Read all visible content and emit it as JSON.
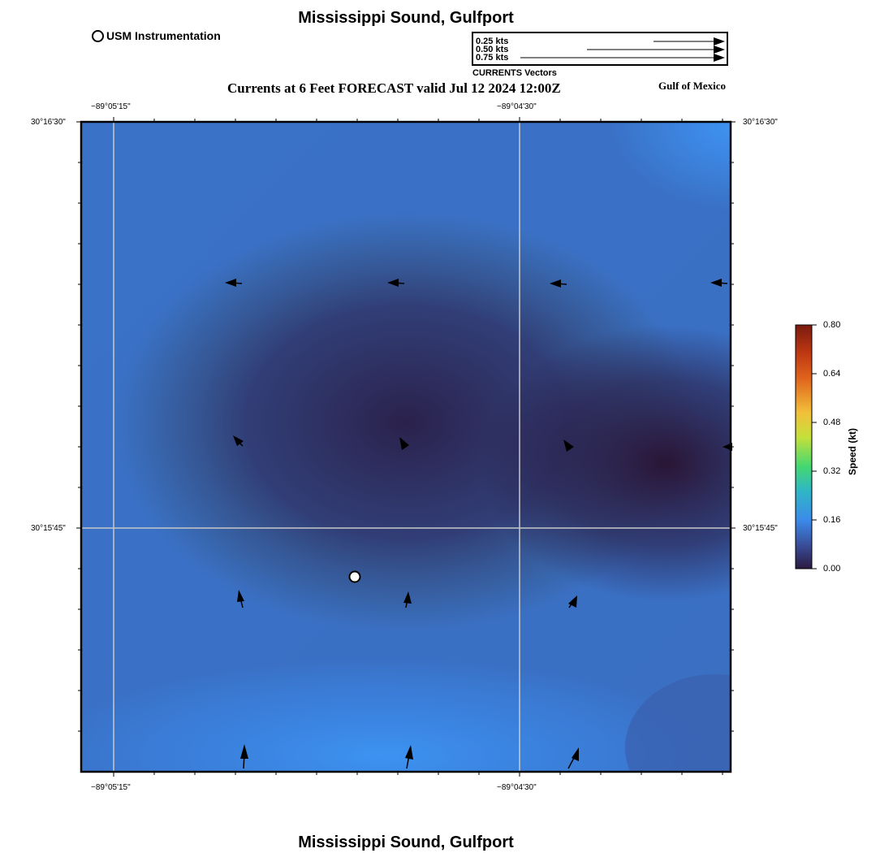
{
  "header": {
    "title": "Mississippi Sound, Gulfport",
    "subtitle": "Currents at 6 Feet FORECAST valid Jul 12 2024 12:00Z",
    "region_label": "Gulf of Mexico"
  },
  "footer": {
    "title": "Mississippi Sound, Gulfport"
  },
  "legend": {
    "usm_label": "USM Instrumentation",
    "vector_reference": [
      "0.25 kts",
      "0.50 kts",
      "0.75 kts"
    ],
    "vector_caption": "CURRENTS Vectors"
  },
  "axes": {
    "lon_ticks": [
      "−89°05'15\"",
      "−89°04'30\""
    ],
    "lat_ticks": [
      "30°16'30\"",
      "30°15'45\""
    ]
  },
  "colorbar": {
    "title": "Speed (kt)",
    "ticks": [
      "0.80",
      "0.64",
      "0.48",
      "0.32",
      "0.16",
      "0.00"
    ],
    "colors": [
      "#7a1a0f",
      "#e0561a",
      "#f5b83a",
      "#cfe03a",
      "#44d870",
      "#2fb7c5",
      "#3b8bea",
      "#3a4f9c",
      "#2a1a40"
    ]
  },
  "map": {
    "ocean_light": "#3b8ff0",
    "ocean_mid": "#3a6ac0",
    "ocean_dark": "#2a1d45",
    "arrow_color": "#000000",
    "station_marker": "USM station"
  }
}
